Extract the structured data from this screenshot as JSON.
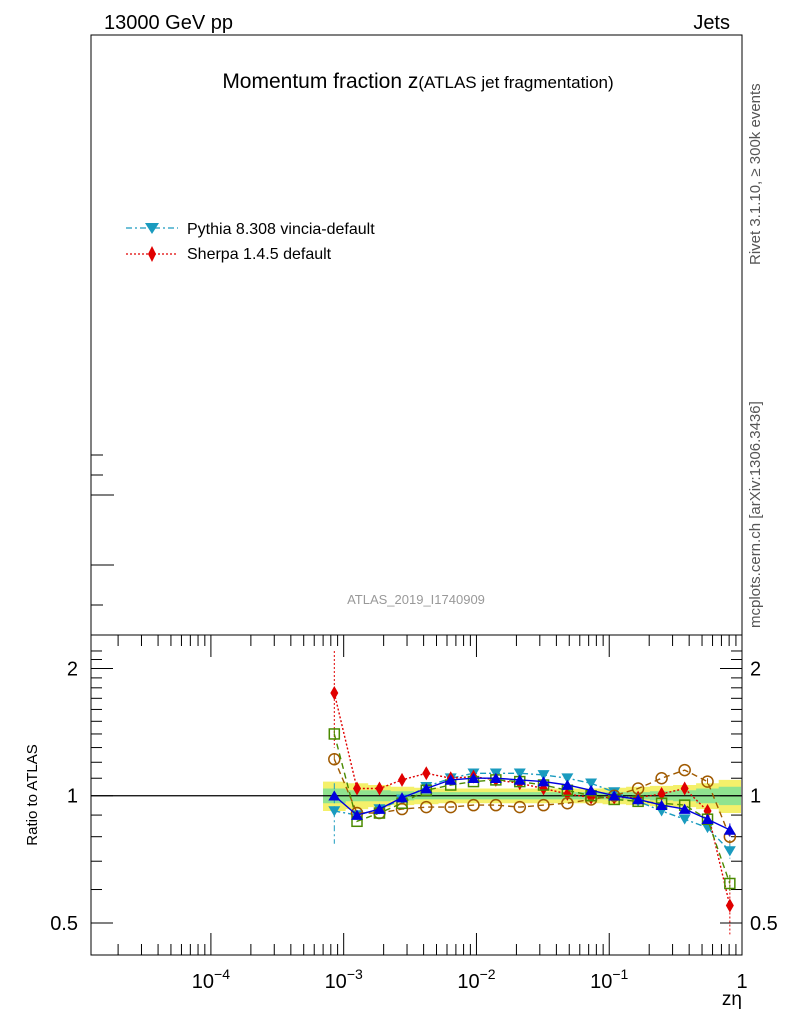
{
  "header": {
    "energy_label": "13000 GeV pp",
    "process_label": "Jets",
    "side_label_rivet": "Rivet 3.1.10, ≥ 300k events",
    "side_label_mcplots": "mcplots.cern.ch [arXiv:1306.3436]",
    "title_main": "Momentum fraction z",
    "title_sub": "(ATLAS jet fragmentation)",
    "analysis_id": "ATLAS_2019_I1740909"
  },
  "legend": [
    {
      "label": "Pythia 8.308 vincia-default",
      "color": "#1a9bbf",
      "marker": "triangle-down",
      "dash": "6,3,2,3"
    },
    {
      "label": "Sherpa 1.4.5 default",
      "color": "#e00000",
      "marker": "diamond",
      "dash": "2,2"
    }
  ],
  "ratio_axis": {
    "ylabel": "Ratio to ATLAS",
    "xlabel": "zη",
    "yticks": [
      {
        "value": 0.5,
        "label": "0.5"
      },
      {
        "value": 1,
        "label": "1"
      },
      {
        "value": 2,
        "label": "2"
      }
    ],
    "xticks": [
      {
        "exp": -4,
        "base": "10",
        "sup": "−4"
      },
      {
        "exp": -3,
        "base": "10",
        "sup": "−3"
      },
      {
        "exp": -2,
        "base": "10",
        "sup": "−2"
      },
      {
        "exp": -1,
        "base": "10",
        "sup": "−1"
      },
      {
        "exp": 0,
        "base": "1",
        "sup": ""
      }
    ]
  },
  "chart_data": {
    "type": "line",
    "title": "Momentum fraction z (ATLAS jet fragmentation)",
    "xlabel": "zη",
    "ylabel": "Ratio to ATLAS",
    "xscale": "log",
    "yscale": "log",
    "xlim": [
      1.25e-05,
      1.0
    ],
    "ylim": [
      0.42,
      2.4
    ],
    "reference_line": 1.0,
    "x": [
      0.00085,
      0.00126,
      0.00186,
      0.00275,
      0.00419,
      0.0064,
      0.0095,
      0.014,
      0.0212,
      0.032,
      0.0484,
      0.073,
      0.109,
      0.165,
      0.248,
      0.37,
      0.55,
      0.81
    ],
    "band": {
      "inner_half_width": [
        0.04,
        0.03,
        0.03,
        0.025,
        0.02,
        0.02,
        0.02,
        0.02,
        0.02,
        0.02,
        0.02,
        0.02,
        0.02,
        0.02,
        0.025,
        0.03,
        0.04,
        0.05
      ],
      "outer_half_width": [
        0.08,
        0.07,
        0.06,
        0.05,
        0.045,
        0.04,
        0.04,
        0.04,
        0.04,
        0.04,
        0.04,
        0.04,
        0.045,
        0.05,
        0.055,
        0.06,
        0.07,
        0.09
      ]
    },
    "series": [
      {
        "name": "Pythia 8.308 vincia-default",
        "in_legend": true,
        "color": "#1a9bbf",
        "marker": "triangle-down",
        "dash": "6,3,2,3",
        "values": [
          0.92,
          0.9,
          0.93,
          0.98,
          1.05,
          1.1,
          1.13,
          1.13,
          1.13,
          1.12,
          1.1,
          1.07,
          1.02,
          0.97,
          0.92,
          0.88,
          0.84,
          0.74
        ],
        "errors": [
          0.15,
          0.02,
          0.01,
          0.01,
          0.01,
          0.01,
          0.01,
          0.01,
          0.01,
          0.01,
          0.01,
          0.01,
          0.01,
          0.01,
          0.01,
          0.01,
          0.02,
          0.03
        ]
      },
      {
        "name": "Sherpa 1.4.5 default",
        "in_legend": true,
        "color": "#e00000",
        "marker": "diamond",
        "dash": "2,2",
        "values": [
          1.75,
          1.04,
          1.04,
          1.09,
          1.13,
          1.1,
          1.11,
          1.09,
          1.07,
          1.04,
          1.01,
          0.99,
          0.99,
          0.99,
          1.01,
          1.04,
          0.92,
          0.55
        ],
        "errors": [
          0.45,
          0.02,
          0.01,
          0.01,
          0.01,
          0.01,
          0.01,
          0.01,
          0.01,
          0.01,
          0.01,
          0.01,
          0.01,
          0.01,
          0.01,
          0.01,
          0.03,
          0.08
        ]
      },
      {
        "name": "Herwig (dashed brown, open circle)",
        "in_legend": false,
        "color": "#a05a00",
        "marker": "circle-open",
        "dash": "6,4",
        "values": [
          1.22,
          0.91,
          0.91,
          0.93,
          0.94,
          0.94,
          0.95,
          0.95,
          0.94,
          0.95,
          0.96,
          0.98,
          1.0,
          1.04,
          1.1,
          1.15,
          1.08,
          0.8
        ],
        "errors": [
          0.04,
          0.01,
          0.01,
          0.01,
          0.01,
          0.01,
          0.01,
          0.01,
          0.01,
          0.01,
          0.01,
          0.01,
          0.01,
          0.01,
          0.01,
          0.01,
          0.02,
          0.03
        ]
      },
      {
        "name": "Green (dashed, open square)",
        "in_legend": false,
        "color": "#4a8a00",
        "marker": "square-open",
        "dash": "6,4",
        "values": [
          1.4,
          0.87,
          0.91,
          0.96,
          1.03,
          1.06,
          1.08,
          1.09,
          1.08,
          1.06,
          1.03,
          1.0,
          0.98,
          0.97,
          0.96,
          0.95,
          0.88,
          0.62
        ],
        "errors": [
          0.04,
          0.01,
          0.01,
          0.01,
          0.01,
          0.01,
          0.01,
          0.01,
          0.01,
          0.01,
          0.01,
          0.01,
          0.01,
          0.01,
          0.01,
          0.01,
          0.02,
          0.03
        ]
      },
      {
        "name": "Blue (solid, triangle-up)",
        "in_legend": false,
        "color": "#0000dd",
        "marker": "triangle-up",
        "dash": "",
        "values": [
          1.0,
          0.9,
          0.93,
          0.99,
          1.04,
          1.09,
          1.1,
          1.1,
          1.09,
          1.08,
          1.06,
          1.03,
          1.0,
          0.98,
          0.95,
          0.93,
          0.88,
          0.83
        ],
        "errors": [
          0.02,
          0.01,
          0.01,
          0.01,
          0.01,
          0.01,
          0.01,
          0.01,
          0.01,
          0.01,
          0.01,
          0.01,
          0.01,
          0.01,
          0.01,
          0.01,
          0.02,
          0.03
        ]
      }
    ]
  }
}
